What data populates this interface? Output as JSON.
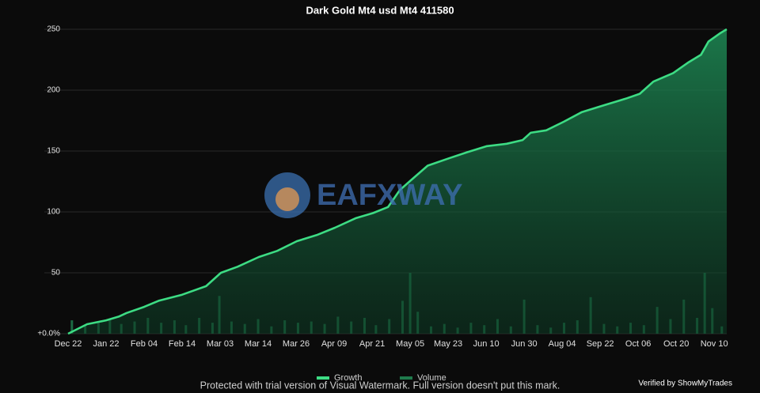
{
  "chart_data": {
    "type": "area",
    "title": "Dark Gold Mt4 usd Mt4 411580",
    "categories": [
      "Dec 22",
      "Jan 22",
      "Feb 04",
      "Feb 14",
      "Mar 03",
      "Mar 14",
      "Mar 26",
      "Apr 09",
      "Apr 21",
      "May 05",
      "May 23",
      "Jun 10",
      "Jun 30",
      "Aug 04",
      "Sep 22",
      "Oct 06",
      "Oct 20",
      "Nov 10"
    ],
    "xlim": [
      0,
      17.33
    ],
    "ylim": [
      0,
      250
    ],
    "yticks": [
      {
        "value": 0,
        "label": "+0.0%"
      },
      50,
      100,
      150,
      200,
      250
    ],
    "grid": true,
    "series": [
      {
        "name": "Growth",
        "color": "#3ddc84",
        "type": "area",
        "x": [
          0,
          0.5,
          1,
          1.33,
          1.54,
          2,
          2.38,
          3,
          3.63,
          4.02,
          4.46,
          5.02,
          5.5,
          6.02,
          6.54,
          7.02,
          7.58,
          8.02,
          8.42,
          8.73,
          9.02,
          9.46,
          10.02,
          10.5,
          11.02,
          11.54,
          11.96,
          12.17,
          12.58,
          13.04,
          13.52,
          14.04,
          14.67,
          15.04,
          15.4,
          15.92,
          16.33,
          16.65,
          16.85,
          17.17,
          17.33
        ],
        "values": [
          0,
          7.8,
          11,
          14,
          17,
          22,
          27,
          32,
          39,
          50,
          55,
          63,
          68,
          76,
          81,
          87,
          95,
          99,
          104,
          118,
          126,
          138,
          144,
          149,
          154,
          156,
          159,
          165,
          167,
          174,
          182,
          187,
          193,
          197,
          207,
          214,
          223,
          229,
          240,
          247,
          250
        ]
      },
      {
        "name": "Volume",
        "color": "#1f7a4c",
        "type": "bar",
        "x": [
          0.1,
          0.45,
          0.8,
          1.1,
          1.4,
          1.75,
          2.1,
          2.45,
          2.8,
          3.1,
          3.45,
          3.8,
          3.98,
          4.3,
          4.65,
          5.0,
          5.35,
          5.7,
          6.05,
          6.4,
          6.75,
          7.1,
          7.45,
          7.8,
          8.1,
          8.45,
          8.8,
          9.0,
          9.2,
          9.55,
          9.9,
          10.25,
          10.6,
          10.95,
          11.3,
          11.65,
          12.0,
          12.35,
          12.7,
          13.05,
          13.4,
          13.75,
          14.1,
          14.45,
          14.8,
          15.15,
          15.5,
          15.85,
          16.2,
          16.55,
          16.75,
          16.95,
          17.2
        ],
        "values": [
          11,
          7,
          9,
          12,
          8,
          10,
          13,
          9,
          11,
          7,
          13,
          9,
          31,
          10,
          8,
          12,
          6,
          11,
          9,
          10,
          8,
          14,
          10,
          13,
          7,
          12,
          27,
          50,
          18,
          6,
          8,
          5,
          9,
          7,
          12,
          6,
          28,
          7,
          5,
          9,
          11,
          30,
          8,
          6,
          9,
          7,
          22,
          12,
          28,
          13,
          50,
          21,
          6
        ]
      }
    ],
    "legend": "bottom",
    "watermark": "EAFXWAY",
    "footer_note": "Protected with trial version of Visual Watermark. Full version doesn't put this mark.",
    "verified": "Verified by ShowMyTrades"
  }
}
